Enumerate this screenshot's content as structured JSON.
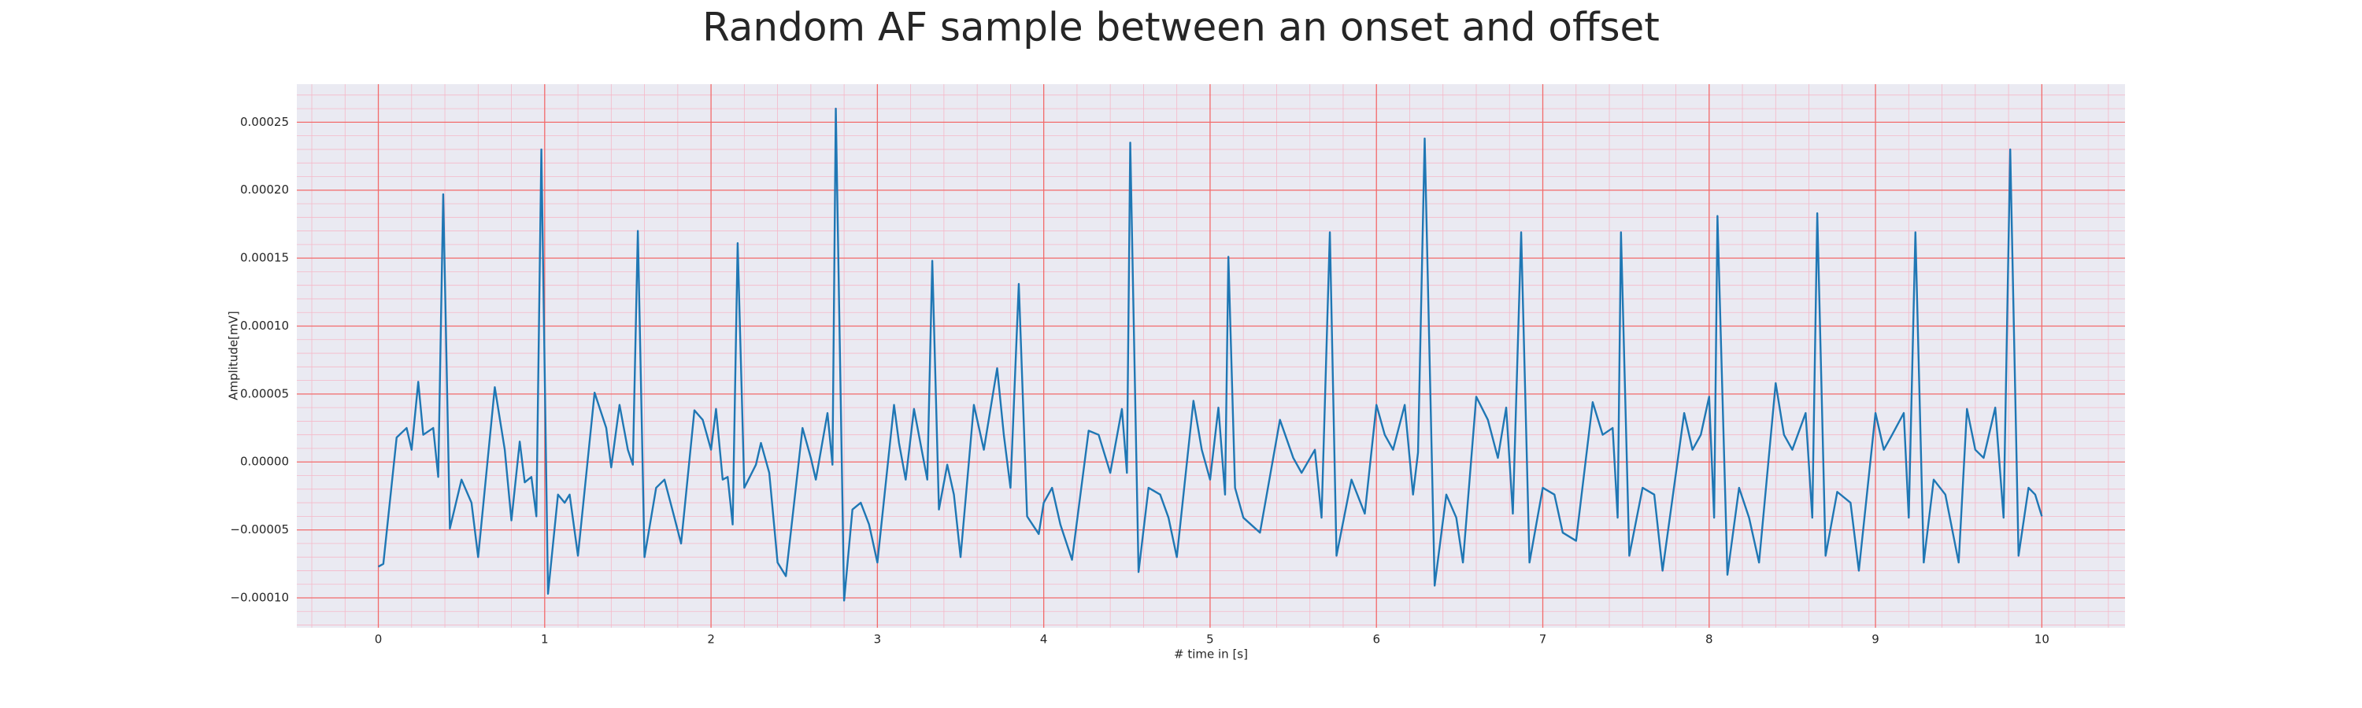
{
  "chart_data": {
    "type": "line",
    "title": "Random AF sample between an onset and offset",
    "xlabel": "# time in [s]",
    "ylabel": "Amplitude[mV]",
    "x": [
      0,
      0.03,
      0.11,
      0.17,
      0.2,
      0.24,
      0.27,
      0.33,
      0.36,
      0.39,
      0.43,
      0.5,
      0.56,
      0.6,
      0.7,
      0.76,
      0.8,
      0.85,
      0.88,
      0.92,
      0.95,
      0.98,
      1.02,
      1.08,
      1.12,
      1.15,
      1.2,
      1.3,
      1.37,
      1.4,
      1.45,
      1.5,
      1.53,
      1.56,
      1.6,
      1.67,
      1.72,
      1.78,
      1.82,
      1.9,
      1.95,
      2.0,
      2.03,
      2.07,
      2.1,
      2.13,
      2.16,
      2.2,
      2.27,
      2.3,
      2.35,
      2.4,
      2.45,
      2.55,
      2.6,
      2.63,
      2.7,
      2.73,
      2.75,
      2.8,
      2.85,
      2.9,
      2.95,
      3.0,
      3.1,
      3.13,
      3.17,
      3.22,
      3.3,
      3.33,
      3.37,
      3.42,
      3.46,
      3.5,
      3.58,
      3.64,
      3.72,
      3.76,
      3.8,
      3.85,
      3.9,
      3.97,
      4.0,
      4.05,
      4.1,
      4.17,
      4.27,
      4.33,
      4.4,
      4.47,
      4.5,
      4.52,
      4.57,
      4.63,
      4.7,
      4.75,
      4.8,
      4.9,
      4.95,
      5.0,
      5.05,
      5.09,
      5.11,
      5.15,
      5.2,
      5.3,
      5.42,
      5.5,
      5.55,
      5.63,
      5.67,
      5.72,
      5.76,
      5.85,
      5.93,
      6.0,
      6.05,
      6.1,
      6.17,
      6.22,
      6.25,
      6.29,
      6.35,
      6.42,
      6.48,
      6.52,
      6.6,
      6.67,
      6.73,
      6.78,
      6.82,
      6.87,
      6.92,
      7.0,
      7.07,
      7.12,
      7.2,
      7.3,
      7.36,
      7.42,
      7.45,
      7.47,
      7.52,
      7.6,
      7.67,
      7.72,
      7.85,
      7.9,
      7.95,
      8.0,
      8.03,
      8.05,
      8.11,
      8.18,
      8.24,
      8.3,
      8.4,
      8.45,
      8.5,
      8.58,
      8.62,
      8.65,
      8.7,
      8.77,
      8.85,
      8.9,
      9.0,
      9.05,
      9.1,
      9.17,
      9.2,
      9.24,
      9.29,
      9.35,
      9.42,
      9.5,
      9.55,
      9.6,
      9.65,
      9.72,
      9.77,
      9.81,
      9.86,
      9.92,
      9.96,
      10.0
    ],
    "series": [
      {
        "color": "#1f77b4",
        "values": [
          -7.7e-05,
          -7.5e-05,
          1.8e-05,
          2.5e-05,
          9e-06,
          5.9e-05,
          2e-05,
          2.5e-05,
          -1.1e-05,
          0.000197,
          -4.9e-05,
          -1.3e-05,
          -3e-05,
          -7e-05,
          5.5e-05,
          9e-06,
          -4.3e-05,
          1.5e-05,
          -1.5e-05,
          -1.1e-05,
          -4e-05,
          0.00023,
          -9.7e-05,
          -2.4e-05,
          -3e-05,
          -2.4e-05,
          -6.9e-05,
          5.1e-05,
          2.5e-05,
          -4e-06,
          4.2e-05,
          9e-06,
          -2e-06,
          0.00017,
          -7e-05,
          -1.9e-05,
          -1.3e-05,
          -4.1e-05,
          -6e-05,
          3.8e-05,
          3.1e-05,
          9e-06,
          3.9e-05,
          -1.3e-05,
          -1.1e-05,
          -4.6e-05,
          0.000161,
          -1.9e-05,
          -2e-06,
          1.4e-05,
          -8e-06,
          -7.4e-05,
          -8.4e-05,
          2.5e-05,
          3e-06,
          -1.3e-05,
          3.6e-05,
          -2e-06,
          0.00026,
          -0.000102,
          -3.5e-05,
          -3e-05,
          -4.6e-05,
          -7.4e-05,
          4.2e-05,
          1.4e-05,
          -1.3e-05,
          3.9e-05,
          -1.3e-05,
          0.000148,
          -3.5e-05,
          -2e-06,
          -2.4e-05,
          -7e-05,
          4.2e-05,
          9e-06,
          6.9e-05,
          2e-05,
          -1.9e-05,
          0.000131,
          -4e-05,
          -5.3e-05,
          -3e-05,
          -1.9e-05,
          -4.6e-05,
          -7.2e-05,
          2.3e-05,
          2e-05,
          -8e-06,
          3.9e-05,
          -8e-06,
          0.000235,
          -8.1e-05,
          -1.9e-05,
          -2.4e-05,
          -4.1e-05,
          -7e-05,
          4.5e-05,
          9e-06,
          -1.3e-05,
          4e-05,
          -2.4e-05,
          0.000151,
          -1.9e-05,
          -4.1e-05,
          -5.2e-05,
          3.1e-05,
          3e-06,
          -8e-06,
          9e-06,
          -4.1e-05,
          0.000169,
          -6.9e-05,
          -1.3e-05,
          -3.8e-05,
          4.2e-05,
          2e-05,
          9e-06,
          4.2e-05,
          -2.4e-05,
          7e-06,
          0.000238,
          -9.1e-05,
          -2.4e-05,
          -4.1e-05,
          -7.4e-05,
          4.8e-05,
          3.1e-05,
          3e-06,
          4e-05,
          -3.8e-05,
          0.000169,
          -7.4e-05,
          -1.9e-05,
          -2.4e-05,
          -5.2e-05,
          -5.8e-05,
          4.4e-05,
          2e-05,
          2.5e-05,
          -4.1e-05,
          0.000169,
          -6.9e-05,
          -1.9e-05,
          -2.4e-05,
          -8e-05,
          3.6e-05,
          9e-06,
          2e-05,
          4.8e-05,
          -4.1e-05,
          0.000181,
          -8.3e-05,
          -1.9e-05,
          -4.1e-05,
          -7.4e-05,
          5.8e-05,
          2e-05,
          9e-06,
          3.6e-05,
          -4.1e-05,
          0.000183,
          -6.9e-05,
          -2.2e-05,
          -3e-05,
          -8e-05,
          3.6e-05,
          9e-06,
          2e-05,
          3.6e-05,
          -4.1e-05,
          0.000169,
          -7.4e-05,
          -1.3e-05,
          -2.4e-05,
          -7.4e-05,
          3.9e-05,
          9e-06,
          3e-06,
          4e-05,
          -4.1e-05,
          0.00023,
          -6.9e-05,
          -1.9e-05,
          -2.4e-05,
          -4e-05
        ]
      }
    ],
    "xlim": [
      -0.49,
      10.5
    ],
    "ylim": [
      -0.000122,
      0.000278
    ],
    "xticks": [
      0,
      1,
      2,
      3,
      4,
      5,
      6,
      7,
      8,
      9,
      10
    ],
    "yticks": [
      {
        "value": -0.0001,
        "label": "−0.00010"
      },
      {
        "value": -5e-05,
        "label": "−0.00005"
      },
      {
        "value": 0,
        "label": "0.00000"
      },
      {
        "value": 5e-05,
        "label": "0.00005"
      },
      {
        "value": 0.0001,
        "label": "0.00010"
      },
      {
        "value": 0.00015,
        "label": "0.00015"
      },
      {
        "value": 0.0002,
        "label": "0.00020"
      },
      {
        "value": 0.00025,
        "label": "0.00025"
      }
    ],
    "grid": true
  }
}
